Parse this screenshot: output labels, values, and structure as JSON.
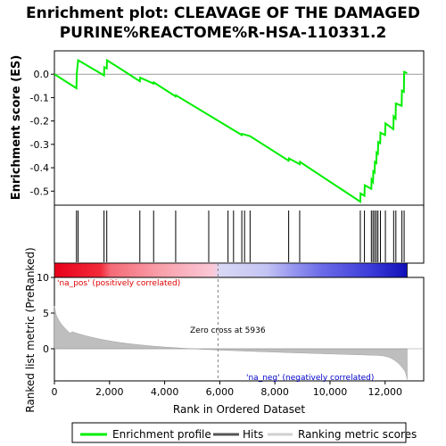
{
  "chart_data": {
    "type": "line",
    "title_line1": "Enrichment plot: CLEAVAGE OF THE DAMAGED",
    "title_line2": "PURINE%REACTOME%R-HSA-110331.2",
    "es_ylabel": "Enrichment score (ES)",
    "metric_ylabel": "Ranked list metric (PreRanked)",
    "xlabel": "Rank in Ordered Dataset",
    "xlim": [
      0,
      13400
    ],
    "es_ylim": [
      -0.56,
      0.1
    ],
    "metric_ylim": [
      -4.5,
      10
    ],
    "x_ticks": [
      0,
      2000,
      4000,
      6000,
      8000,
      10000,
      12000
    ],
    "x_tick_labels": [
      "0",
      "2,000",
      "4,000",
      "6,000",
      "8,000",
      "10,000",
      "12,000"
    ],
    "es_ticks": [
      0.0,
      -0.1,
      -0.2,
      -0.3,
      -0.4,
      -0.5
    ],
    "es_tick_labels": [
      "0.0",
      "-0.1",
      "-0.2",
      "-0.3",
      "-0.4",
      "-0.5"
    ],
    "metric_ticks": [
      10,
      5,
      0
    ],
    "metric_tick_labels": [
      "10",
      "5",
      "0"
    ],
    "enrichment_profile": [
      [
        0,
        0.0
      ],
      [
        800,
        -0.06
      ],
      [
        810,
        0.0
      ],
      [
        860,
        0.06
      ],
      [
        1800,
        -0.005
      ],
      [
        1810,
        0.03
      ],
      [
        1900,
        0.025
      ],
      [
        1910,
        0.06
      ],
      [
        3100,
        -0.03
      ],
      [
        3110,
        -0.015
      ],
      [
        3600,
        -0.04
      ],
      [
        3610,
        -0.035
      ],
      [
        4400,
        -0.095
      ],
      [
        4410,
        -0.09
      ],
      [
        6800,
        -0.26
      ],
      [
        6810,
        -0.255
      ],
      [
        7100,
        -0.265
      ],
      [
        8500,
        -0.37
      ],
      [
        8510,
        -0.36
      ],
      [
        8900,
        -0.385
      ],
      [
        8910,
        -0.375
      ],
      [
        11100,
        -0.545
      ],
      [
        11110,
        -0.51
      ],
      [
        11250,
        -0.52
      ],
      [
        11260,
        -0.475
      ],
      [
        11500,
        -0.49
      ],
      [
        11510,
        -0.45
      ],
      [
        11560,
        -0.46
      ],
      [
        11570,
        -0.415
      ],
      [
        11620,
        -0.42
      ],
      [
        11630,
        -0.375
      ],
      [
        11680,
        -0.38
      ],
      [
        11690,
        -0.335
      ],
      [
        11740,
        -0.34
      ],
      [
        11750,
        -0.29
      ],
      [
        11820,
        -0.295
      ],
      [
        11830,
        -0.25
      ],
      [
        12000,
        -0.26
      ],
      [
        12010,
        -0.21
      ],
      [
        12300,
        -0.235
      ],
      [
        12310,
        -0.18
      ],
      [
        12380,
        -0.19
      ],
      [
        12390,
        -0.125
      ],
      [
        12600,
        -0.135
      ],
      [
        12610,
        -0.07
      ],
      [
        12680,
        -0.075
      ],
      [
        12690,
        0.01
      ],
      [
        12800,
        0.005
      ]
    ],
    "hits": [
      800,
      860,
      1800,
      1900,
      3100,
      3600,
      4400,
      5600,
      6300,
      6500,
      6800,
      6900,
      7100,
      8500,
      8900,
      11100,
      11250,
      11500,
      11560,
      11620,
      11680,
      11740,
      11830,
      12010,
      12310,
      12390,
      12610,
      12690
    ],
    "zero_cross": 5936,
    "series": [
      {
        "name": "Enrichment profile",
        "color": "#00ee00"
      },
      {
        "name": "Hits",
        "color": "#555555"
      },
      {
        "name": "Ranking metric scores",
        "color": "#bebebe"
      }
    ],
    "annotations": {
      "zero_cross_text": "Zero cross at 5936",
      "pos_text": "'na_pos' (positively correlated)",
      "neg_text": "'na_neg' (negatively correlated)"
    },
    "colors": {
      "pos_text": "#dd0000",
      "neg_text": "#0000cc",
      "profile": "#00ee00",
      "zero_line": "#808080"
    }
  }
}
